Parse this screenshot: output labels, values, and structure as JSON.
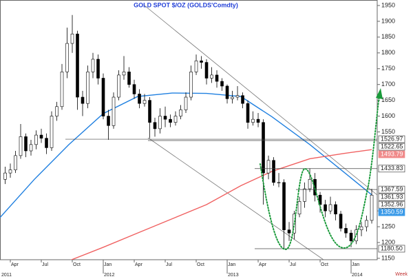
{
  "chart_data": {
    "type": "candlestick",
    "title": "GOLD  SPOT  $/OZ  (GOLDS'Comdty)",
    "interval_label": "Week",
    "xlim": [
      2,
      38.53
    ],
    "ylim": [
      1145.6,
      1967.4
    ],
    "yticks": [
      1150,
      1200,
      1250,
      1300,
      1550,
      1600,
      1650,
      1700,
      1750,
      1800,
      1850,
      1900,
      1950
    ],
    "xticks": [
      {
        "value": 3,
        "label": "Apr"
      },
      {
        "value": 6,
        "label": "Jul"
      },
      {
        "value": 9,
        "label": "Oct"
      },
      {
        "value": 12,
        "label": "Jan"
      },
      {
        "value": 15,
        "label": "Apr"
      },
      {
        "value": 18,
        "label": "Jul"
      },
      {
        "value": 21,
        "label": "Oct"
      },
      {
        "value": 24,
        "label": "Jan"
      },
      {
        "value": 27,
        "label": "Apr"
      },
      {
        "value": 30,
        "label": "Jul"
      },
      {
        "value": 33,
        "label": "Oct"
      },
      {
        "value": 36,
        "label": "Jan"
      }
    ],
    "year_labels": [
      {
        "value": 0,
        "label": "2011"
      },
      {
        "value": 12,
        "label": "2012"
      },
      {
        "value": 24,
        "label": "2013"
      },
      {
        "value": 36,
        "label": "2014"
      }
    ],
    "candles": {
      "up_color": "#ffffff",
      "down_color": "#000000",
      "x": [
        2.5,
        3,
        3.5,
        4,
        4.5,
        5,
        5.5,
        6,
        6.5,
        7,
        7.5,
        8,
        8.5,
        9,
        9.5,
        10,
        10.5,
        11,
        11.5,
        12,
        12.5,
        13,
        13.5,
        14,
        14.5,
        15,
        15.5,
        16,
        16.5,
        17,
        17.5,
        18,
        18.5,
        19,
        19.5,
        20,
        20.5,
        21,
        21.5,
        22,
        22.5,
        23,
        23.5,
        24,
        24.5,
        25,
        25.5,
        26,
        26.5,
        27,
        27.5,
        28,
        28.5,
        29,
        29.5,
        30,
        30.5,
        31,
        31.5,
        32,
        32.5,
        33,
        33.5,
        34,
        34.5,
        35,
        35.5,
        36,
        36.5,
        37,
        37.5,
        38
      ],
      "open": [
        1400,
        1420,
        1430,
        1475,
        1535,
        1490,
        1510,
        1540,
        1530,
        1500,
        1600,
        1630,
        1740,
        1830,
        1860,
        1660,
        1640,
        1740,
        1780,
        1720,
        1600,
        1570,
        1660,
        1730,
        1740,
        1700,
        1670,
        1640,
        1650,
        1580,
        1560,
        1600,
        1590,
        1580,
        1600,
        1620,
        1660,
        1740,
        1775,
        1770,
        1720,
        1730,
        1710,
        1695,
        1655,
        1660,
        1665,
        1640,
        1580,
        1590,
        1580,
        1420,
        1460,
        1390,
        1390,
        1240,
        1230,
        1290,
        1330,
        1370,
        1400,
        1350,
        1320,
        1300,
        1320,
        1290,
        1245,
        1230,
        1205,
        1240,
        1250,
        1270
      ],
      "high": [
        1440,
        1450,
        1490,
        1575,
        1545,
        1525,
        1555,
        1560,
        1545,
        1615,
        1645,
        1765,
        1880,
        1920,
        1870,
        1680,
        1760,
        1800,
        1795,
        1735,
        1620,
        1675,
        1745,
        1790,
        1755,
        1715,
        1685,
        1670,
        1660,
        1595,
        1625,
        1630,
        1605,
        1615,
        1635,
        1675,
        1760,
        1795,
        1790,
        1780,
        1755,
        1745,
        1720,
        1700,
        1680,
        1695,
        1675,
        1650,
        1615,
        1610,
        1590,
        1475,
        1470,
        1420,
        1400,
        1265,
        1300,
        1345,
        1390,
        1435,
        1420,
        1360,
        1335,
        1345,
        1330,
        1300,
        1260,
        1240,
        1255,
        1265,
        1285,
        1370
      ],
      "low": [
        1385,
        1405,
        1420,
        1465,
        1470,
        1475,
        1495,
        1515,
        1480,
        1490,
        1585,
        1620,
        1720,
        1800,
        1620,
        1600,
        1625,
        1720,
        1700,
        1590,
        1525,
        1560,
        1650,
        1715,
        1690,
        1655,
        1625,
        1630,
        1530,
        1535,
        1545,
        1565,
        1565,
        1570,
        1590,
        1610,
        1650,
        1730,
        1750,
        1700,
        1705,
        1690,
        1680,
        1640,
        1640,
        1650,
        1625,
        1560,
        1570,
        1565,
        1320,
        1400,
        1380,
        1375,
        1180,
        1205,
        1210,
        1280,
        1310,
        1360,
        1330,
        1295,
        1280,
        1290,
        1270,
        1235,
        1215,
        1185,
        1195,
        1220,
        1235,
        1260
      ],
      "close": [
        1420,
        1430,
        1475,
        1535,
        1490,
        1510,
        1540,
        1530,
        1500,
        1600,
        1630,
        1740,
        1830,
        1860,
        1660,
        1640,
        1740,
        1780,
        1720,
        1600,
        1570,
        1660,
        1730,
        1740,
        1700,
        1670,
        1640,
        1650,
        1580,
        1560,
        1600,
        1590,
        1580,
        1600,
        1620,
        1660,
        1740,
        1775,
        1770,
        1720,
        1730,
        1710,
        1695,
        1655,
        1660,
        1665,
        1640,
        1580,
        1590,
        1580,
        1420,
        1460,
        1390,
        1390,
        1240,
        1230,
        1290,
        1330,
        1370,
        1400,
        1350,
        1320,
        1300,
        1320,
        1290,
        1245,
        1230,
        1205,
        1240,
        1250,
        1270,
        1350
      ]
    },
    "lines": [
      {
        "color": "#1e7fe0",
        "x": [
          2,
          5.33,
          8.67,
          12,
          15.33,
          18.67,
          22,
          25.33,
          28.33,
          32,
          35.33,
          38
        ],
        "values": [
          1279,
          1400,
          1510,
          1608,
          1662,
          1673,
          1672,
          1662,
          1598,
          1510,
          1422,
          1351
        ]
      },
      {
        "color": "#f06060",
        "x": [
          8.5,
          12,
          15.33,
          18.67,
          22,
          25.33,
          28.33,
          32,
          35.33,
          38
        ],
        "values": [
          1140,
          1185,
          1230,
          1275,
          1320,
          1380,
          1425,
          1465,
          1482,
          1494
        ]
      }
    ],
    "price_labels": [
      {
        "value": 1526.97,
        "label": "1526.97"
      },
      {
        "value": 1522.65,
        "label": "1522.65"
      },
      {
        "value": 1493.79,
        "label": "1493.79",
        "bg": "#f08a8a"
      },
      {
        "value": 1433.83,
        "label": "1433.83"
      },
      {
        "value": 1367.59,
        "label": "1367.59"
      },
      {
        "value": 1361.93,
        "label": "1361.93"
      },
      {
        "value": 1352.96,
        "label": "1352.96"
      },
      {
        "value": 1350.59,
        "label": "1350.59",
        "bg": "#3a9ae8"
      },
      {
        "value": 1180.5,
        "label": "1180.50"
      }
    ]
  }
}
